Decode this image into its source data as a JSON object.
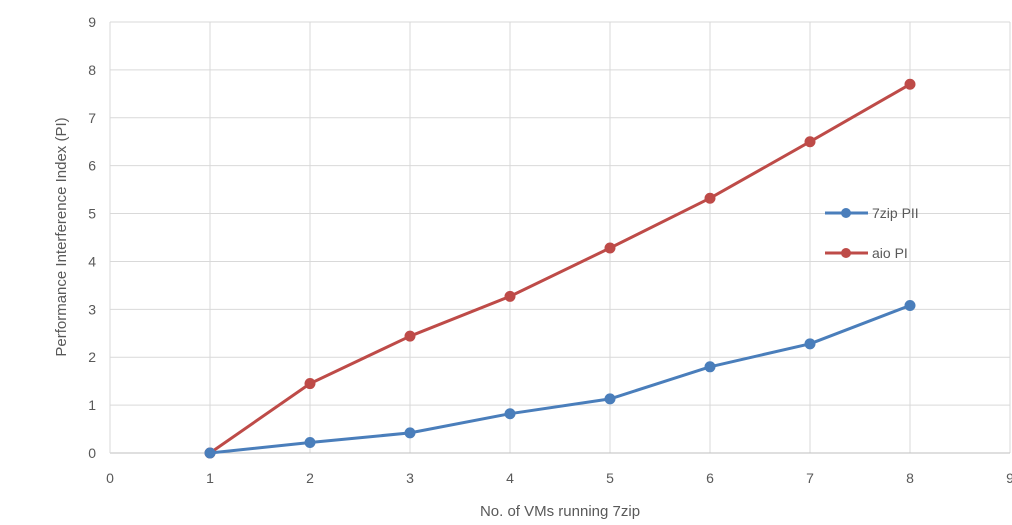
{
  "chart_data": {
    "type": "line",
    "title": "",
    "xlabel": "No. of VMs running 7zip",
    "ylabel": "Performance Interference Index (PI)",
    "xlim": [
      0,
      9
    ],
    "ylim": [
      0,
      9
    ],
    "xticks": [
      "0",
      "1",
      "2",
      "3",
      "4",
      "5",
      "6",
      "7",
      "8",
      "9"
    ],
    "yticks": [
      "0",
      "1",
      "2",
      "3",
      "4",
      "5",
      "6",
      "7",
      "8",
      "9"
    ],
    "grid": true,
    "legend_position": "right",
    "x": [
      1,
      2,
      3,
      4,
      5,
      6,
      7,
      8
    ],
    "series": [
      {
        "name": "7zip PII",
        "color": "#4a7ebb",
        "values": [
          0,
          0.22,
          0.42,
          0.82,
          1.13,
          1.8,
          2.28,
          3.08
        ]
      },
      {
        "name": "aio PI",
        "color": "#be4b48",
        "values": [
          0,
          1.45,
          2.44,
          3.27,
          4.28,
          5.32,
          6.5,
          7.7
        ]
      }
    ]
  }
}
